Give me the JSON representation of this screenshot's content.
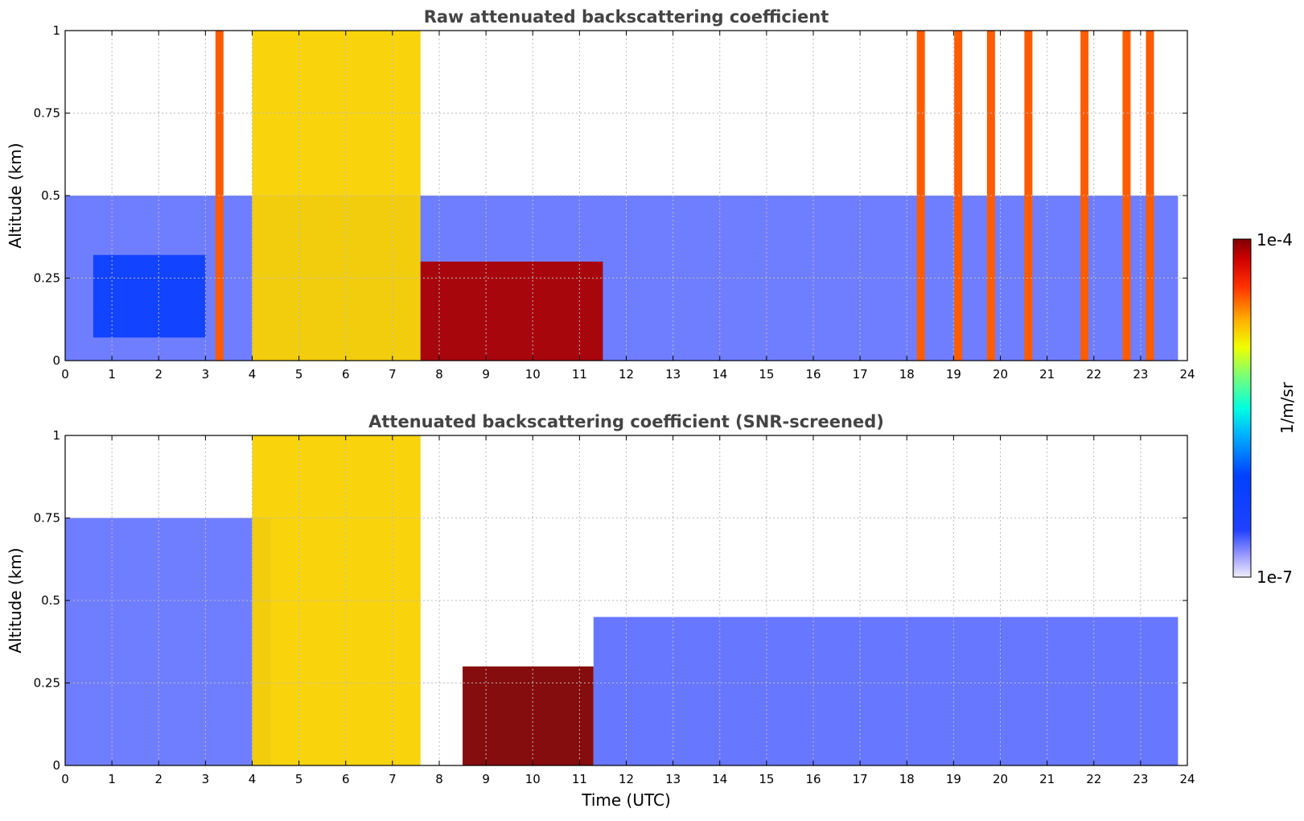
{
  "chart_data": [
    {
      "type": "heatmap",
      "title": "Raw attenuated backscattering coefficient",
      "xlabel": "",
      "ylabel": "Altitude (km)",
      "xlim": [
        0,
        24
      ],
      "ylim": [
        0,
        1
      ],
      "x_ticks": [
        "0",
        "1",
        "2",
        "3",
        "4",
        "5",
        "6",
        "7",
        "8",
        "9",
        "10",
        "11",
        "12",
        "13",
        "14",
        "15",
        "16",
        "17",
        "18",
        "19",
        "20",
        "21",
        "22",
        "23",
        "24"
      ],
      "y_ticks": [
        "0",
        "0.25",
        "0.5",
        "0.75",
        "1"
      ],
      "grid": true,
      "colormap": "jet",
      "color_scale": "log",
      "features": [
        {
          "kind": "low-level layer",
          "t_start": 0,
          "t_end": 23.8,
          "z_top_km": 0.5,
          "value": 2e-07
        },
        {
          "kind": "aerosol patch",
          "t_start": 0.6,
          "t_end": 3.0,
          "z_bottom_km": 0.07,
          "z_top_km": 0.32,
          "value": 5e-07
        },
        {
          "kind": "precipitation band",
          "t_start": 4.0,
          "t_end": 7.6,
          "z_bottom_km": 0,
          "z_top_km": 1,
          "value": 1.5e-05
        },
        {
          "kind": "dense cloud layer",
          "t_start": 7.6,
          "t_end": 11.5,
          "z_bottom_km": 0,
          "z_top_km": 0.3,
          "value": 8e-05
        },
        {
          "kind": "narrow precipitation columns",
          "times_utc": [
            3.3,
            18.3,
            19.1,
            19.8,
            20.6,
            21.8,
            22.7,
            23.2
          ],
          "value": 3e-05
        }
      ]
    },
    {
      "type": "heatmap",
      "title": "Attenuated backscattering coefficient (SNR-screened)",
      "xlabel": "Time (UTC)",
      "ylabel": "Altitude (km)",
      "xlim": [
        0,
        24
      ],
      "ylim": [
        0,
        1
      ],
      "x_ticks": [
        "0",
        "1",
        "2",
        "3",
        "4",
        "5",
        "6",
        "7",
        "8",
        "9",
        "10",
        "11",
        "12",
        "13",
        "14",
        "15",
        "16",
        "17",
        "18",
        "19",
        "20",
        "21",
        "22",
        "23",
        "24"
      ],
      "y_ticks": [
        "0",
        "0.25",
        "0.5",
        "0.75",
        "1"
      ],
      "grid": true,
      "colormap": "jet",
      "color_scale": "log",
      "features": [
        {
          "kind": "boundary layer (screened)",
          "t_start": 0,
          "t_end": 4.4,
          "z_top_km": 0.75,
          "value": 2e-07
        },
        {
          "kind": "precipitation band",
          "t_start": 4.0,
          "t_end": 7.6,
          "z_bottom_km": 0,
          "z_top_km": 1,
          "value": 1.5e-05
        },
        {
          "kind": "saturated cloud base",
          "t_start": 8.5,
          "t_end": 11.3,
          "z_bottom_km": 0,
          "z_top_km": 0.3,
          "value": 0.0001
        },
        {
          "kind": "boundary layer (screened)",
          "t_start": 11.3,
          "t_end": 23.8,
          "z_top_km": 0.45,
          "value": 2e-07
        }
      ]
    }
  ],
  "colorbar": {
    "max_label": "1e-4",
    "min_label": "1e-7",
    "label": "1/m/sr",
    "range": [
      1e-07,
      0.0001
    ]
  }
}
